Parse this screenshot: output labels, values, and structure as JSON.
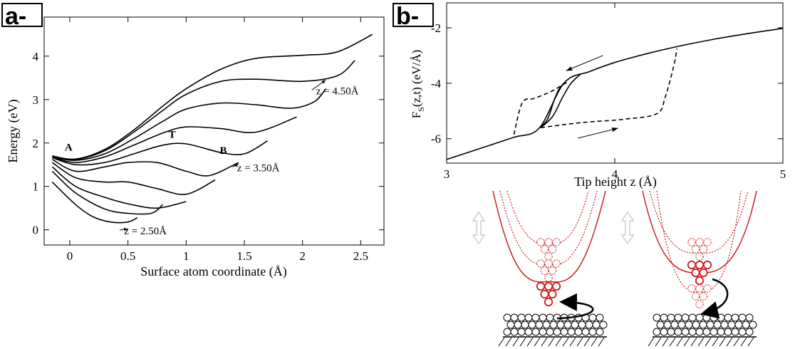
{
  "panels": {
    "a": "a-",
    "b": "b-"
  },
  "chart_data": [
    {
      "type": "line",
      "panel": "a",
      "xlabel": "Surface atom coordinate (Å)",
      "ylabel": "Energy (eV)",
      "xlim": [
        -0.22,
        2.7
      ],
      "ylim": [
        -0.35,
        4.9
      ],
      "xticks": [
        0,
        0.5,
        1,
        1.5,
        2,
        2.5
      ],
      "xtick_labels": [
        "0",
        "0.5",
        "1",
        "1.5",
        "2",
        "2.5"
      ],
      "yticks": [
        0,
        1,
        2,
        3,
        4
      ],
      "ytick_labels": [
        "0",
        "1",
        "2",
        "3",
        "4"
      ],
      "grid": false,
      "series": [
        {
          "x": [
            -0.15,
            0.05,
            0.3,
            0.55,
            0.8,
            1.0,
            1.3,
            1.6,
            2.0,
            2.3,
            2.6
          ],
          "y": [
            1.7,
            1.63,
            1.85,
            2.3,
            2.85,
            3.25,
            3.7,
            3.95,
            4.02,
            4.1,
            4.5
          ]
        },
        {
          "x": [
            -0.15,
            0.05,
            0.3,
            0.55,
            0.8,
            1.0,
            1.3,
            1.6,
            2.0,
            2.3,
            2.45
          ],
          "y": [
            1.7,
            1.62,
            1.82,
            2.25,
            2.75,
            3.12,
            3.42,
            3.47,
            3.42,
            3.55,
            3.9
          ]
        },
        {
          "x": [
            -0.15,
            0.05,
            0.3,
            0.55,
            0.8,
            1.0,
            1.3,
            1.6,
            1.9,
            2.1,
            2.2
          ],
          "y": [
            1.68,
            1.6,
            1.75,
            2.1,
            2.5,
            2.78,
            2.92,
            2.88,
            2.8,
            2.95,
            3.25
          ]
        },
        {
          "x": [
            -0.15,
            0.05,
            0.3,
            0.55,
            0.8,
            1.0,
            1.3,
            1.6,
            1.95
          ],
          "y": [
            1.67,
            1.55,
            1.68,
            1.95,
            2.23,
            2.37,
            2.33,
            2.25,
            2.6
          ]
        },
        {
          "x": [
            -0.15,
            0.05,
            0.3,
            0.55,
            0.8,
            1.0,
            1.3,
            1.5,
            1.7
          ],
          "y": [
            1.66,
            1.5,
            1.55,
            1.75,
            1.95,
            1.98,
            1.78,
            1.75,
            2.05
          ]
        },
        {
          "x": [
            -0.15,
            0.05,
            0.3,
            0.5,
            0.75,
            1.0,
            1.2,
            1.45
          ],
          "y": [
            1.62,
            1.35,
            1.45,
            1.55,
            1.55,
            1.35,
            1.25,
            1.55
          ]
        },
        {
          "x": [
            -0.15,
            0.05,
            0.3,
            0.5,
            0.75,
            1.0,
            1.25
          ],
          "y": [
            1.55,
            1.2,
            1.1,
            1.1,
            0.95,
            0.82,
            1.15
          ]
        },
        {
          "x": [
            -0.15,
            0.05,
            0.3,
            0.5,
            0.75,
            1.0
          ],
          "y": [
            1.45,
            1.0,
            0.75,
            0.6,
            0.5,
            0.65
          ]
        },
        {
          "x": [
            -0.15,
            0.05,
            0.3,
            0.5,
            0.7,
            0.8
          ],
          "y": [
            1.35,
            0.85,
            0.48,
            0.38,
            0.38,
            0.58
          ]
        },
        {
          "x": [
            -0.15,
            0.05,
            0.2,
            0.35,
            0.5,
            0.58
          ],
          "y": [
            1.1,
            0.58,
            0.3,
            0.18,
            0.18,
            0.28
          ]
        }
      ],
      "annotations": [
        {
          "text": "A",
          "x": -0.01,
          "y": 1.82
        },
        {
          "text": "T",
          "x": 0.88,
          "y": 2.12
        },
        {
          "text": "B",
          "x": 1.32,
          "y": 1.75
        },
        {
          "text": "z = 4.50Å",
          "x": 2.3,
          "y": 3.12,
          "arrow_to": [
            2.2,
            3.45
          ]
        },
        {
          "text": "z = 3.50Å",
          "x": 1.62,
          "y": 1.35,
          "arrow_to": [
            1.45,
            1.52
          ]
        },
        {
          "text": "z = 2.50Å",
          "x": 0.65,
          "y": -0.1,
          "arrow_to": [
            0.5,
            0.02
          ]
        }
      ]
    },
    {
      "type": "line",
      "panel": "b",
      "xlabel": "Tip height z (Å)",
      "ylabel": "F_S(z,t) (eV/Å)",
      "xlim": [
        3,
        5
      ],
      "ylim": [
        -6.88,
        -1.1
      ],
      "xticks": [
        3,
        4,
        5
      ],
      "xtick_labels": [
        "3",
        "4",
        "5"
      ],
      "yticks": [
        -6,
        -4,
        -2
      ],
      "ytick_labels": [
        "-6",
        "-4",
        "-2"
      ],
      "grid": false,
      "series": [
        {
          "style": "solid-thick",
          "x": [
            3,
            3.2,
            3.4,
            3.55,
            3.7,
            3.85,
            4.0,
            4.2,
            4.4,
            4.6,
            4.8,
            5.0
          ],
          "y": [
            -6.75,
            -6.35,
            -5.95,
            -5.62,
            -3.98,
            -3.58,
            -3.25,
            -2.92,
            -2.64,
            -2.4,
            -2.2,
            -2.02
          ]
        },
        {
          "style": "solid",
          "x": [
            3.55,
            3.6,
            3.64,
            3.67,
            3.7
          ],
          "y": [
            -5.62,
            -5.3,
            -4.6,
            -4.2,
            -3.98
          ]
        },
        {
          "style": "solid",
          "x": [
            3.56,
            3.63,
            3.69,
            3.74,
            3.8
          ],
          "y": [
            -5.6,
            -5.2,
            -4.5,
            -4.0,
            -3.65
          ]
        },
        {
          "style": "dashed",
          "x": [
            3.4,
            3.45,
            3.52,
            3.62,
            3.72
          ],
          "y": [
            -5.85,
            -4.7,
            -4.55,
            -4.3,
            -3.95
          ]
        },
        {
          "style": "dashed",
          "x": [
            3.56,
            3.8,
            4.05,
            4.25,
            4.3,
            4.35,
            4.37
          ],
          "y": [
            -5.6,
            -5.42,
            -5.3,
            -5.1,
            -4.5,
            -3.4,
            -2.75
          ]
        }
      ],
      "annotations": [
        {
          "text": "arrow-left",
          "from": [
            3.93,
            -3.0
          ],
          "to": [
            3.71,
            -3.55
          ]
        },
        {
          "text": "arrow-right",
          "from": [
            3.78,
            -5.98
          ],
          "to": [
            4.02,
            -5.62
          ]
        }
      ]
    }
  ],
  "schematic": {
    "label": "tip atom transfer schematic",
    "icons": [
      "double-arrow-icon",
      "double-arrow-icon"
    ]
  }
}
